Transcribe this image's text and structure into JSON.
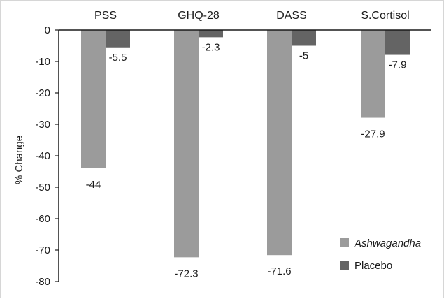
{
  "chart_data": {
    "type": "bar",
    "categories": [
      "PSS",
      "GHQ-28",
      "DASS",
      "S.Cortisol"
    ],
    "series": [
      {
        "name": "Ashwagandha",
        "values": [
          -44,
          -72.3,
          -71.6,
          -27.9
        ],
        "color": "#9b9b9b"
      },
      {
        "name": "Placebo",
        "values": [
          -5.5,
          -2.3,
          -5,
          -7.9
        ],
        "color": "#646464"
      }
    ],
    "value_labels": {
      "Ashwagandha": [
        "-44",
        "-72.3",
        "-71.6",
        "-27.9"
      ],
      "Placebo": [
        "-5.5",
        "-2.3",
        "-5",
        "-7.9"
      ]
    },
    "ylabel": "% Change",
    "ylim": [
      -80,
      0
    ],
    "yticks": [
      0,
      -10,
      -20,
      -30,
      -40,
      -50,
      -60,
      -70,
      -80
    ],
    "grid": false,
    "legend_position": "bottom-right"
  }
}
